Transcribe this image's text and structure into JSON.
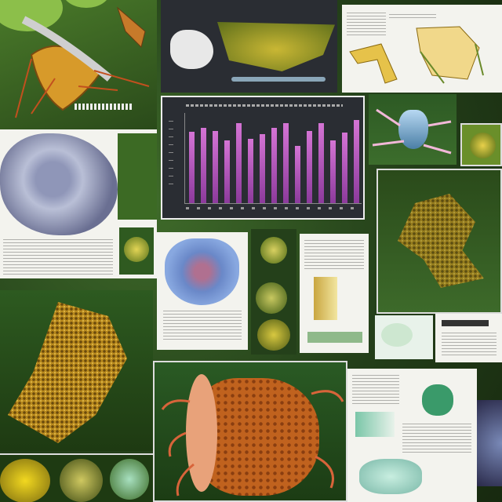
{
  "collage": {
    "chart_panel": {
      "title": "",
      "bar_heights_relative": [
        0.85,
        0.9,
        0.86,
        0.75,
        0.95,
        0.77,
        0.82,
        0.9,
        0.95,
        0.68,
        0.86,
        0.95,
        0.75,
        0.84,
        0.99
      ]
    },
    "colors": {
      "leaf_green": "#3f6b2a",
      "honeycomb_gold": "#b98a1e",
      "bar_magenta": "#c060c8",
      "paper": "#f3f3ee"
    }
  }
}
